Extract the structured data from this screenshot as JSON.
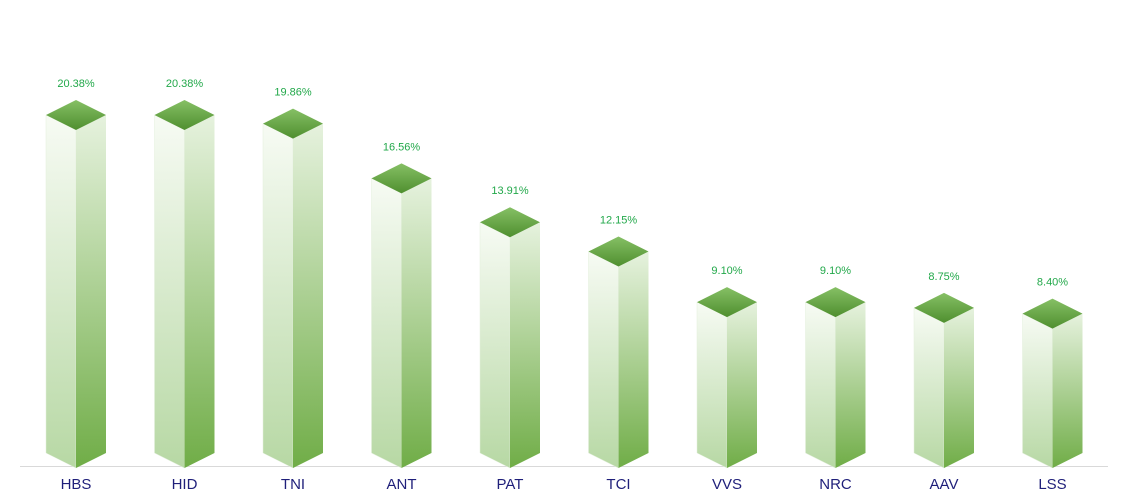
{
  "chart_data": {
    "type": "bar3d",
    "categories": [
      "HBS",
      "HID",
      "TNI",
      "ANT",
      "PAT",
      "TCI",
      "VVS",
      "NRC",
      "AAV",
      "LSS"
    ],
    "values": [
      20.38,
      20.38,
      19.86,
      16.56,
      13.91,
      12.15,
      9.1,
      9.1,
      8.75,
      8.4
    ],
    "value_labels": [
      "20.38%",
      "20.38%",
      "19.86%",
      "16.56%",
      "13.91%",
      "12.15%",
      "9.10%",
      "9.10%",
      "8.75%",
      "8.40%"
    ],
    "color": "#70ad47"
  }
}
